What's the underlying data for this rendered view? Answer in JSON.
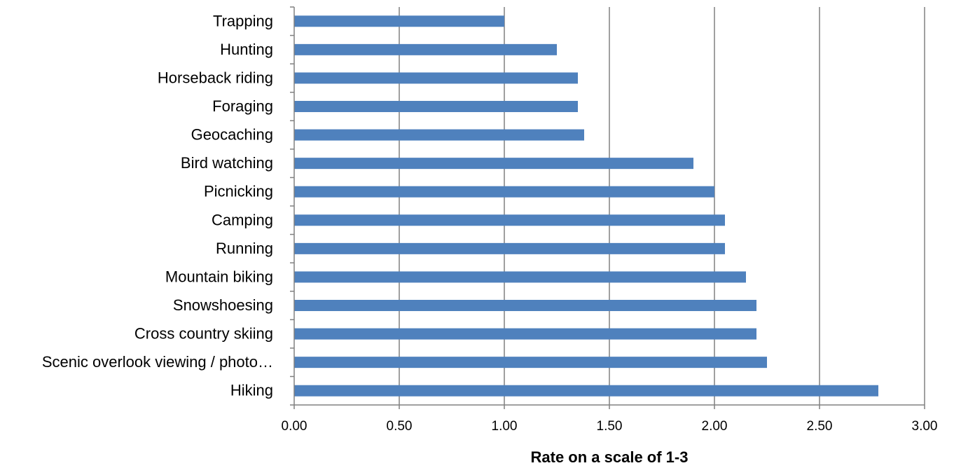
{
  "chart_data": {
    "type": "bar",
    "orientation": "horizontal",
    "title": "",
    "xlabel": "Rate on a scale of 1-3",
    "ylabel": "",
    "categories": [
      "Trapping",
      "Hunting",
      "Horseback riding",
      "Foraging",
      "Geocaching",
      "Bird watching",
      "Picnicking",
      "Camping",
      "Running",
      "Mountain biking",
      "Snowshoesing",
      "Cross country skiing",
      "Scenic overlook viewing / photo…",
      "Hiking"
    ],
    "values": [
      1.0,
      1.25,
      1.35,
      1.35,
      1.38,
      1.9,
      2.0,
      2.05,
      2.05,
      2.15,
      2.2,
      2.2,
      2.25,
      2.78
    ],
    "xlim": [
      0,
      3
    ],
    "xticks": [
      0,
      0.5,
      1,
      1.5,
      2,
      2.5,
      3
    ],
    "xtick_labels": [
      "0.00",
      "0.50",
      "1.00",
      "1.50",
      "2.00",
      "2.50",
      "3.00"
    ],
    "grid": true,
    "legend": "none",
    "bar_color": "#4f81bd",
    "grid_color": "#808080"
  }
}
